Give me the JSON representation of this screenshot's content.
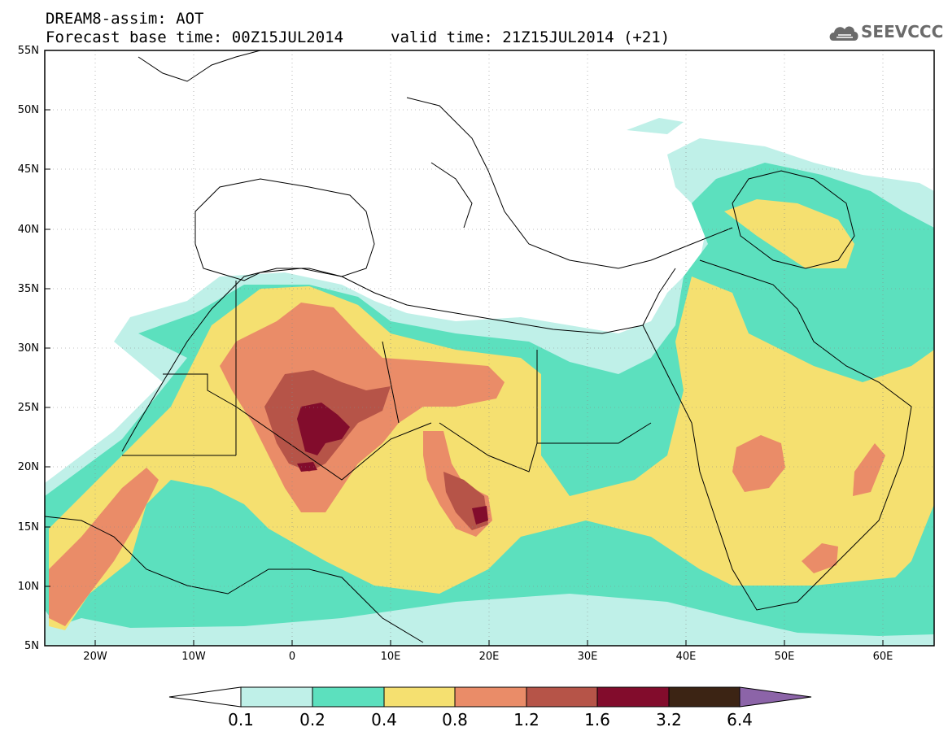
{
  "header": {
    "title": "DREAM8-assim: AOT",
    "forecast_base": "Forecast base time: 00Z15JUL2014",
    "valid_time": "valid time: 21Z15JUL2014 (+21)"
  },
  "logo": {
    "text": "SEEVCCC",
    "icon": "cloud-logo-icon",
    "color": "#6b6b6b"
  },
  "map": {
    "lon_range": [
      -25,
      65
    ],
    "lat_range": [
      5,
      55
    ],
    "lat_ticks": [
      "55N",
      "50N",
      "45N",
      "40N",
      "35N",
      "30N",
      "25N",
      "20N",
      "15N",
      "10N",
      "5N"
    ],
    "lon_ticks": [
      "20W",
      "10W",
      "0",
      "10E",
      "20E",
      "30E",
      "40E",
      "50E",
      "60E"
    ]
  },
  "colorbar": {
    "labels": [
      "0.1",
      "0.2",
      "0.4",
      "0.8",
      "1.2",
      "1.6",
      "3.2",
      "6.4"
    ],
    "colors": [
      "#ffffff",
      "#bff0e8",
      "#5ce0be",
      "#f5e070",
      "#ea8c68",
      "#b65448",
      "#820c2c",
      "#3c2414",
      "#8c64a8"
    ]
  },
  "palette": {
    "c1": "#bff0e8",
    "c2": "#5ce0be",
    "c3": "#f5e070",
    "c4": "#ea8c68",
    "c5": "#b65448",
    "c6": "#820c2c"
  }
}
